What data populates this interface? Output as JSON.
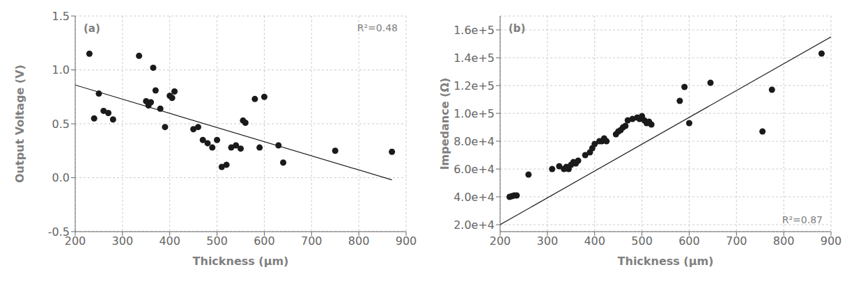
{
  "chart_data": [
    {
      "type": "scatter",
      "annotations": [
        "(a)",
        "R²=0.48"
      ],
      "xlabel": "Thickness (μm)",
      "ylabel": "Output Voltage (V)",
      "xlim": [
        200,
        900
      ],
      "ylim": [
        -0.5,
        1.5
      ],
      "xticks": [
        200,
        300,
        400,
        500,
        600,
        700,
        800,
        900
      ],
      "yticks": [
        -0.5,
        {
          "value": 0,
          "label": "0.0"
        },
        0.5,
        {
          "value": 1,
          "label": "1.0"
        },
        1.5
      ],
      "series": [
        {
          "type": "scatter",
          "color": "#1a1a1a",
          "x": [
            230,
            240,
            250,
            260,
            270,
            280,
            335,
            350,
            355,
            360,
            365,
            370,
            380,
            390,
            400,
            405,
            410,
            450,
            460,
            470,
            480,
            490,
            500,
            510,
            520,
            530,
            540,
            550,
            555,
            560,
            580,
            590,
            600,
            630,
            640,
            750,
            870
          ],
          "values": [
            1.15,
            0.55,
            0.78,
            0.62,
            0.6,
            0.54,
            1.13,
            0.71,
            0.67,
            0.7,
            1.02,
            0.81,
            0.64,
            0.47,
            0.76,
            0.74,
            0.8,
            0.45,
            0.47,
            0.35,
            0.32,
            0.28,
            0.35,
            0.1,
            0.12,
            0.28,
            0.3,
            0.27,
            0.53,
            0.51,
            0.73,
            0.28,
            0.75,
            0.3,
            0.14,
            0.25,
            0.24
          ]
        },
        {
          "type": "line",
          "color": "#1a1a1a",
          "x": [
            200,
            870
          ],
          "values": [
            0.86,
            -0.02
          ]
        }
      ]
    },
    {
      "type": "scatter",
      "annotations": [
        "(b)",
        "R²=0.87"
      ],
      "xlabel": "Thickness (μm)",
      "ylabel": "Impedance (Ω)",
      "xlim": [
        200,
        900
      ],
      "ylim": [
        15000,
        170000
      ],
      "xticks": [
        200,
        300,
        400,
        500,
        600,
        700,
        800,
        900
      ],
      "yticks": [
        {
          "value": 20000,
          "label": "2.0e+4"
        },
        {
          "value": 40000,
          "label": "4.0e+4"
        },
        {
          "value": 60000,
          "label": "6.0e+4"
        },
        {
          "value": 80000,
          "label": "8.0e+4"
        },
        {
          "value": 100000,
          "label": "1.0e+5"
        },
        {
          "value": 120000,
          "label": "1.2e+5"
        },
        {
          "value": 140000,
          "label": "1.4e+5"
        },
        {
          "value": 160000,
          "label": "1.6e+5"
        }
      ],
      "series": [
        {
          "type": "scatter",
          "color": "#1a1a1a",
          "x": [
            220,
            225,
            230,
            235,
            260,
            310,
            325,
            335,
            340,
            345,
            350,
            355,
            360,
            365,
            380,
            390,
            395,
            400,
            410,
            415,
            420,
            425,
            445,
            450,
            455,
            460,
            465,
            470,
            480,
            490,
            495,
            500,
            505,
            510,
            515,
            520,
            580,
            590,
            600,
            645,
            755,
            775,
            880
          ],
          "values": [
            40000,
            40500,
            41000,
            41000,
            56000,
            60000,
            62000,
            60000,
            61500,
            60000,
            63000,
            65000,
            64000,
            66000,
            70000,
            72000,
            75000,
            78000,
            80000,
            80000,
            82000,
            80000,
            85000,
            87000,
            88000,
            90000,
            91000,
            95000,
            96000,
            97000,
            96000,
            98000,
            95000,
            93000,
            94000,
            92000,
            109000,
            119000,
            93000,
            122000,
            87000,
            117000,
            143000
          ]
        },
        {
          "type": "line",
          "color": "#1a1a1a",
          "x": [
            200,
            900
          ],
          "values": [
            20000,
            155000
          ]
        }
      ]
    }
  ]
}
